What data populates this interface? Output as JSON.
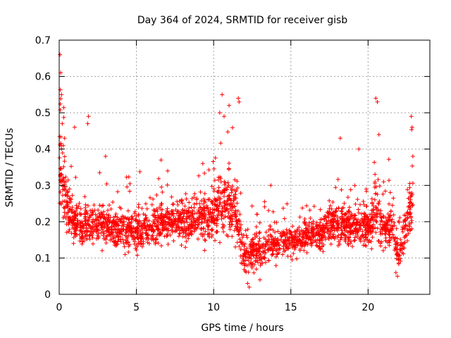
{
  "chart_data": {
    "type": "scatter",
    "title": "Day 364 of 2024, SRMTID for receiver gisb",
    "xlabel": "GPS time / hours",
    "ylabel": "SRMTID / TECUs",
    "xlim": [
      0,
      24
    ],
    "ylim": [
      0,
      0.7
    ],
    "xticks": [
      0,
      5,
      10,
      15,
      20
    ],
    "xtick_labels": [
      "0",
      "5",
      "10",
      "15",
      "20"
    ],
    "yticks": [
      0,
      0.1,
      0.2,
      0.3,
      0.4,
      0.5,
      0.6,
      0.7
    ],
    "ytick_labels": [
      "0",
      "0.1",
      "0.2",
      "0.3",
      "0.4",
      "0.5",
      "0.6",
      "0.7"
    ],
    "grid": true,
    "marker": "+",
    "series_color": "#ff0000",
    "x_extent_hours": [
      0,
      22.9
    ],
    "baseline_profile": {
      "hours": [
        0,
        0.5,
        1,
        2,
        3,
        4,
        5,
        6,
        7,
        8,
        9,
        10,
        10.5,
        11,
        11.5,
        12,
        12.5,
        13,
        14,
        15,
        16,
        17,
        18,
        19,
        20,
        20.5,
        21,
        21.5,
        22,
        22.5,
        22.9
      ],
      "typical_value": [
        0.38,
        0.24,
        0.2,
        0.19,
        0.19,
        0.18,
        0.17,
        0.19,
        0.2,
        0.2,
        0.21,
        0.22,
        0.26,
        0.24,
        0.22,
        0.1,
        0.12,
        0.12,
        0.14,
        0.15,
        0.16,
        0.17,
        0.2,
        0.18,
        0.19,
        0.22,
        0.17,
        0.2,
        0.1,
        0.2,
        0.25
      ],
      "spread": [
        0.12,
        0.06,
        0.05,
        0.05,
        0.05,
        0.05,
        0.05,
        0.05,
        0.05,
        0.05,
        0.05,
        0.07,
        0.09,
        0.08,
        0.08,
        0.04,
        0.05,
        0.04,
        0.04,
        0.04,
        0.04,
        0.05,
        0.05,
        0.05,
        0.05,
        0.08,
        0.05,
        0.06,
        0.04,
        0.06,
        0.08
      ]
    },
    "notable_peaks": [
      {
        "x": 0.05,
        "y": 0.66
      },
      {
        "x": 0.1,
        "y": 0.61
      },
      {
        "x": 0.15,
        "y": 0.55
      },
      {
        "x": 0.2,
        "y": 0.47
      },
      {
        "x": 0.35,
        "y": 0.43
      },
      {
        "x": 1.0,
        "y": 0.46
      },
      {
        "x": 1.9,
        "y": 0.49
      },
      {
        "x": 1.85,
        "y": 0.47
      },
      {
        "x": 3.0,
        "y": 0.38
      },
      {
        "x": 6.6,
        "y": 0.37
      },
      {
        "x": 9.3,
        "y": 0.36
      },
      {
        "x": 10.55,
        "y": 0.55
      },
      {
        "x": 10.4,
        "y": 0.5
      },
      {
        "x": 11.0,
        "y": 0.52
      },
      {
        "x": 11.6,
        "y": 0.54
      },
      {
        "x": 11.65,
        "y": 0.53
      },
      {
        "x": 12.2,
        "y": 0.03
      },
      {
        "x": 12.3,
        "y": 0.02
      },
      {
        "x": 13.0,
        "y": 0.04
      },
      {
        "x": 13.7,
        "y": 0.3
      },
      {
        "x": 18.2,
        "y": 0.43
      },
      {
        "x": 19.4,
        "y": 0.4
      },
      {
        "x": 20.5,
        "y": 0.54
      },
      {
        "x": 20.6,
        "y": 0.53
      },
      {
        "x": 20.7,
        "y": 0.44
      },
      {
        "x": 21.0,
        "y": 0.31
      },
      {
        "x": 21.8,
        "y": 0.06
      },
      {
        "x": 21.9,
        "y": 0.05
      },
      {
        "x": 22.8,
        "y": 0.49
      },
      {
        "x": 22.85,
        "y": 0.46
      },
      {
        "x": 22.9,
        "y": 0.38
      }
    ]
  }
}
